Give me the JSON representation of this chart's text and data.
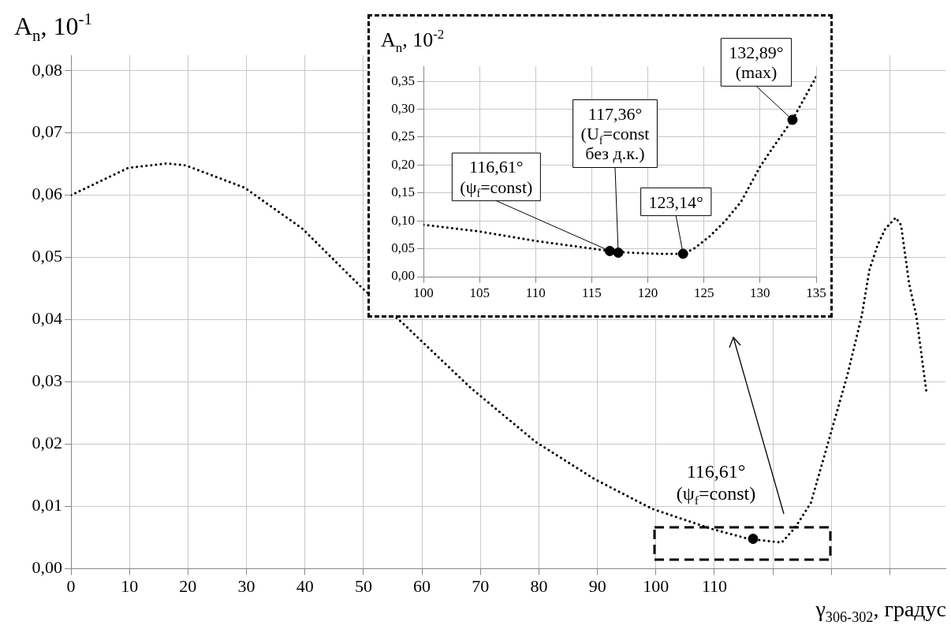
{
  "chart_data": [
    {
      "type": "line",
      "ylabel": "A$_{n}$, 10$^{-1}$",
      "xlabel": "γ$_{306-302}$, градус",
      "xlim": [
        0,
        149.5
      ],
      "ylim": [
        0,
        0.0825
      ],
      "xticks": [
        0,
        10,
        20,
        30,
        40,
        50,
        60,
        70,
        80,
        90,
        100,
        110,
        {
          "value": 120,
          "label": null
        },
        {
          "value": 130,
          "label": null
        },
        {
          "value": 140,
          "label": null
        }
      ],
      "yticks": [
        {
          "value": 0,
          "label": "0,00"
        },
        {
          "value": 0.01,
          "label": "0,01"
        },
        {
          "value": 0.02,
          "label": "0,02"
        },
        {
          "value": 0.03,
          "label": "0,03"
        },
        {
          "value": 0.04,
          "label": "0,04"
        },
        {
          "value": 0.05,
          "label": "0,05"
        },
        {
          "value": 0.06,
          "label": "0,06"
        },
        {
          "value": 0.07,
          "label": "0,07"
        },
        {
          "value": 0.08,
          "label": "0,08"
        }
      ],
      "grid": true,
      "line_style": "dotted",
      "series": [
        {
          "color": "#000000",
          "marker": "none",
          "x": [
            0,
            9.8,
            16.4,
            19.6,
            29.7,
            39.6,
            50,
            57,
            60,
            68.4,
            79.4,
            89.5,
            99.4,
            109.5,
            115.8,
            121.5,
            123.8,
            126.5,
            129.3,
            132.7,
            135.2,
            136.5,
            137.9,
            139.2,
            141,
            141.9,
            143.3,
            144.5,
            146.3
          ],
          "values": [
            0.06,
            0.0644,
            0.0651,
            0.0648,
            0.0612,
            0.0546,
            0.0449,
            0.0392,
            0.0365,
            0.029,
            0.0204,
            0.0144,
            0.0096,
            0.0064,
            0.0048,
            0.0042,
            0.0066,
            0.0106,
            0.0198,
            0.031,
            0.0407,
            0.048,
            0.052,
            0.0546,
            0.0564,
            0.0552,
            0.0457,
            0.0407,
            0.028
          ]
        },
        {
          "type": "scatter",
          "color": "#000000",
          "marker": "circle",
          "x": [
            116.61
          ],
          "values": [
            0.0048
          ]
        }
      ],
      "annotations": [
        {
          "text": "116,61°\n(ψ$_{f}$=const)",
          "x": 116.61,
          "y": 0.0048
        }
      ]
    },
    {
      "type": "line",
      "ylabel": "A$_{n}$, 10$^{-2}$",
      "xlim": [
        100,
        135
      ],
      "ylim": [
        0,
        0.377
      ],
      "xticks": [
        100,
        105,
        110,
        115,
        120,
        125,
        130,
        135
      ],
      "yticks": [
        {
          "value": 0,
          "label": "0,00"
        },
        {
          "value": 0.05,
          "label": "0,05"
        },
        {
          "value": 0.1,
          "label": "0,10"
        },
        {
          "value": 0.15,
          "label": "0,15"
        },
        {
          "value": 0.2,
          "label": "0,20"
        },
        {
          "value": 0.25,
          "label": "0,25"
        },
        {
          "value": 0.3,
          "label": "0,30"
        },
        {
          "value": 0.35,
          "label": "0,35"
        }
      ],
      "grid": true,
      "line_style": "dotted",
      "series": [
        {
          "color": "#000000",
          "marker": "none",
          "x": [
            100,
            105,
            110,
            116.61,
            118.4,
            121,
            123.14,
            124.1,
            125.5,
            126.9,
            128.3,
            130,
            131.1,
            132.89,
            135
          ],
          "values": [
            0.093,
            0.081,
            0.064,
            0.046,
            0.043,
            0.041,
            0.041,
            0.05,
            0.072,
            0.1,
            0.134,
            0.197,
            0.23,
            0.281,
            0.358
          ]
        },
        {
          "type": "scatter",
          "color": "#000000",
          "marker": "circle",
          "x": [
            116.61,
            117.36,
            123.14,
            132.89
          ],
          "values": [
            0.046,
            0.043,
            0.041,
            0.281
          ]
        }
      ],
      "annotations": [
        {
          "text": "116,61°\n(ψ$_{f}$=const)",
          "x": 116.61,
          "y": 0.046
        },
        {
          "text": "117,36°\n(U$_{f}$=const\nбез д.к.)",
          "x": 117.36,
          "y": 0.043
        },
        {
          "text": "123,14°",
          "x": 123.14,
          "y": 0.041
        },
        {
          "text": "132,89°\n(max)",
          "x": 132.89,
          "y": 0.281
        }
      ]
    }
  ]
}
